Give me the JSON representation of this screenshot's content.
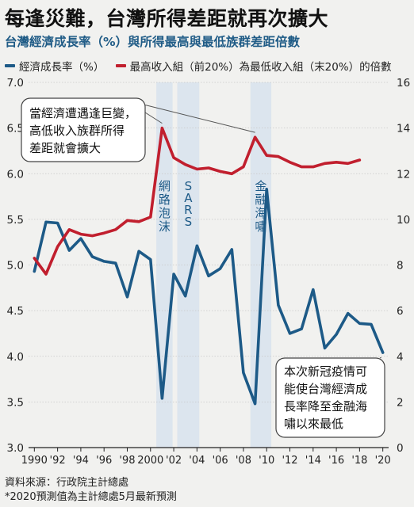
{
  "header": {
    "title": "每逢災難，台灣所得差距就再次擴大",
    "subtitle": "台灣經濟成長率（%）與所得最高與最低族群差距倍數"
  },
  "legend": [
    {
      "label": "經濟成長率（%）",
      "color": "#1d5a87"
    },
    {
      "label": "最高收入組（前20%）為最低收入組（末20%）的倍數",
      "color": "#c11f2e"
    }
  ],
  "footer": {
    "source": "資料來源：行政院主計總處",
    "note": "*2020預測值為主計總處5月最新預測"
  },
  "chart_data": {
    "type": "line",
    "x": [
      1990,
      1991,
      1992,
      1993,
      1994,
      1995,
      1996,
      1997,
      1998,
      1999,
      2000,
      2001,
      2002,
      2003,
      2004,
      2005,
      2006,
      2007,
      2008,
      2009,
      2010,
      2011,
      2012,
      2013,
      2014,
      2015,
      2016,
      2017,
      2018,
      2019,
      2020
    ],
    "x_tick_labels": [
      "1990",
      "'92",
      "'94",
      "'96",
      "'98",
      "2000",
      "'02",
      "'04",
      "'06",
      "'08",
      "'10",
      "'12",
      "'14",
      "'16",
      "'18",
      "'20"
    ],
    "x_tick_values": [
      1990,
      1992,
      1994,
      1996,
      1998,
      2000,
      2002,
      2004,
      2006,
      2008,
      2010,
      2012,
      2014,
      2016,
      2018,
      2020
    ],
    "xlim": [
      1989.5,
      2020.5
    ],
    "y_left": {
      "lim": [
        3.0,
        7.0
      ],
      "ticks": [
        "3.0",
        "3.5",
        "4.0",
        "4.5",
        "5.0",
        "5.5",
        "6.0",
        "6.5",
        "7.0"
      ]
    },
    "y_right": {
      "lim": [
        0,
        16
      ],
      "ticks": [
        "0",
        "2",
        "4",
        "6",
        "8",
        "10",
        "12",
        "14",
        "16"
      ]
    },
    "series": [
      {
        "axis": "left",
        "color": "#1d5a87",
        "x": [
          1990,
          1991,
          1992,
          1993,
          1994,
          1995,
          1996,
          1997,
          1998,
          1999,
          2000,
          2001,
          2002,
          2003,
          2004,
          2005,
          2006,
          2007,
          2008,
          2009,
          2010,
          2011,
          2012,
          2013,
          2014,
          2015,
          2016,
          2017,
          2018,
          2019,
          2020
        ],
        "values": [
          4.93,
          5.47,
          5.46,
          5.16,
          5.29,
          5.09,
          5.04,
          5.02,
          4.65,
          5.15,
          5.06,
          3.54,
          4.9,
          4.66,
          5.21,
          4.88,
          4.96,
          5.17,
          3.82,
          3.48,
          5.83,
          4.56,
          4.25,
          4.3,
          4.73,
          4.09,
          4.24,
          4.47,
          4.36,
          4.35,
          4.04
        ]
      },
      {
        "axis": "right",
        "color": "#c11f2e",
        "x": [
          1990,
          1991,
          1992,
          1993,
          1994,
          1995,
          1996,
          1997,
          1998,
          1999,
          2000,
          2001,
          2002,
          2003,
          2004,
          2005,
          2006,
          2007,
          2008,
          2009,
          2010,
          2011,
          2012,
          2013,
          2014,
          2015,
          2016,
          2017,
          2018
        ],
        "values": [
          8.3,
          7.6,
          8.8,
          9.55,
          9.35,
          9.28,
          9.4,
          9.55,
          9.95,
          9.9,
          10.1,
          14.0,
          12.7,
          12.4,
          12.2,
          12.25,
          12.1,
          12.0,
          12.3,
          13.6,
          12.8,
          12.75,
          12.5,
          12.3,
          12.3,
          12.45,
          12.5,
          12.45,
          12.6
        ]
      }
    ],
    "bands": [
      {
        "from": 2000.5,
        "to": 2001.9,
        "label": "網路泡沫"
      },
      {
        "from": 2002.3,
        "to": 2004.2,
        "label": "SARS"
      },
      {
        "from": 2008.6,
        "to": 2010.4,
        "label": "金融海嘯"
      }
    ],
    "annotations": [
      {
        "lines": [
          "當經濟遭遇逢巨變，",
          "高低收入族群所得",
          "差距就會擴大"
        ]
      },
      {
        "lines": [
          "本次新冠疫情可",
          "能使台灣經濟成",
          "長率降至金融海",
          "嘯以來最低"
        ]
      }
    ]
  }
}
